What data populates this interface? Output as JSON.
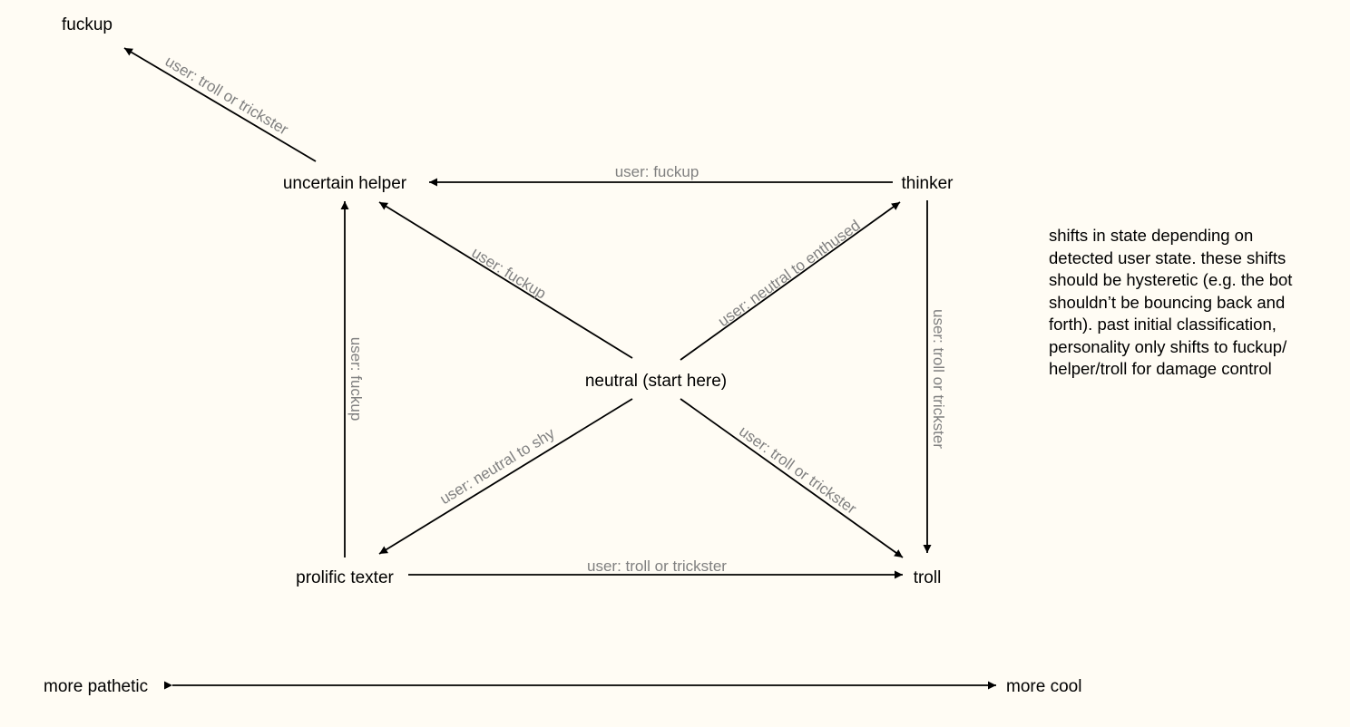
{
  "nodes": {
    "fuckup": "fuckup",
    "uncertain_helper": "uncertain helper",
    "thinker": "thinker",
    "neutral": "neutral (start here)",
    "prolific_texter": "prolific texter",
    "troll": "troll"
  },
  "edges": {
    "helper_to_fuckup": "user: troll or trickster",
    "thinker_to_helper": "user: fuckup",
    "neutral_to_helper": "user: fuckup",
    "neutral_to_thinker": "user: neutral to enthused",
    "thinker_to_troll": "user: troll or trickster",
    "texter_to_helper": "user: fuckup",
    "neutral_to_texter": "user: neutral to shy",
    "neutral_to_troll": "user: troll or trickster",
    "texter_to_troll": "user: troll or trickster"
  },
  "axis": {
    "left": "more pathetic",
    "right": "more cool"
  },
  "note": "shifts in state depending on detected user state. these shifts should be hysteretic (e.g. the bot shouldn’t be bouncing back and forth). past initial classification, personality only shifts to fuckup/ helper/troll for damage control",
  "colors": {
    "background": "#fffcf4",
    "node_text": "#000000",
    "edge_label": "#808080",
    "edge_line": "#000000"
  }
}
